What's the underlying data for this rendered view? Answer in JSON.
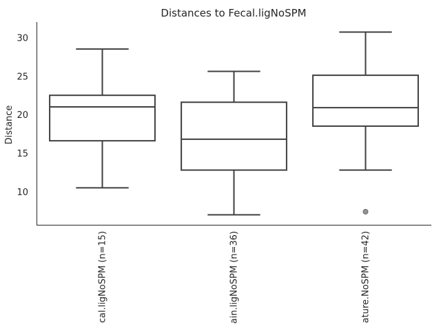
{
  "chart_data": {
    "type": "box",
    "title": "Distances to Fecal.ligNoSPM",
    "xlabel": "",
    "ylabel": "Distance",
    "ylim": [
      5.7,
      32
    ],
    "yticks": [
      10,
      15,
      20,
      25,
      30
    ],
    "grid": false,
    "legend": "none",
    "categories": [
      "cal.ligNoSPM (n=15)",
      "ain.ligNoSPM (n=36)",
      "ature.NoSPM (n=42)"
    ],
    "boxes": [
      {
        "whisker_low": 10.5,
        "q1": 16.6,
        "median": 21.0,
        "q3": 22.5,
        "whisker_high": 28.5,
        "outliers": []
      },
      {
        "whisker_low": 7.0,
        "q1": 12.8,
        "median": 16.8,
        "q3": 21.6,
        "whisker_high": 25.6,
        "outliers": []
      },
      {
        "whisker_low": 12.8,
        "q1": 18.5,
        "median": 20.9,
        "q3": 25.1,
        "whisker_high": 30.7,
        "outliers": [
          7.4
        ]
      }
    ],
    "colors": {
      "box_edge": "#3f3f3f",
      "box_fill": "#ffffff",
      "flier": "#939393"
    }
  }
}
